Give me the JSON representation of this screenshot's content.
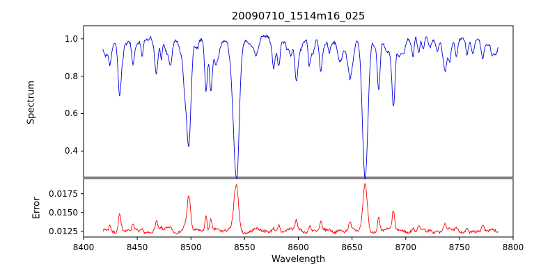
{
  "figure": {
    "title": "20090710_1514m16_025",
    "xlabel": "Wavelength",
    "background_color": "#ffffff",
    "axis_color": "#000000"
  },
  "x_axis": {
    "ticks": [
      8400,
      8450,
      8500,
      8550,
      8600,
      8650,
      8700,
      8750,
      8800
    ],
    "tick_labels": [
      "8400",
      "8450",
      "8500",
      "8550",
      "8600",
      "8650",
      "8700",
      "8750",
      "8800"
    ],
    "xlim": [
      8400,
      8800
    ]
  },
  "chart_data": [
    {
      "type": "line",
      "name": "spectrum",
      "ylabel": "Spectrum",
      "color": "#0000dd",
      "x_range": [
        8418,
        8786
      ],
      "xlim": [
        8400,
        8800
      ],
      "ylim": [
        0.26,
        1.07
      ],
      "yticks": [
        0.4,
        0.6,
        0.8,
        1.0
      ],
      "ytick_labels": [
        "0.4",
        "0.6",
        "0.8",
        "1.0"
      ],
      "continuum_level": 1.0,
      "absorption_lines": [
        {
          "center": 8424.5,
          "depth": 0.1,
          "width": 1.1
        },
        {
          "center": 8433.5,
          "depth": 0.27,
          "width": 1.4
        },
        {
          "center": 8446.0,
          "depth": 0.09,
          "width": 1.1
        },
        {
          "center": 8468.0,
          "depth": 0.13,
          "width": 1.3
        },
        {
          "center": 8498.0,
          "depth": 0.545,
          "width": 2.0
        },
        {
          "center": 8514.0,
          "depth": 0.22,
          "width": 1.2
        },
        {
          "center": 8518.5,
          "depth": 0.18,
          "width": 1.1
        },
        {
          "center": 8542.1,
          "depth": 0.715,
          "width": 2.6
        },
        {
          "center": 8582.0,
          "depth": 0.09,
          "width": 1.1
        },
        {
          "center": 8598.0,
          "depth": 0.12,
          "width": 1.2
        },
        {
          "center": 8611.0,
          "depth": 0.09,
          "width": 1.1
        },
        {
          "center": 8621.0,
          "depth": 0.1,
          "width": 1.1
        },
        {
          "center": 8648.0,
          "depth": 0.1,
          "width": 1.1
        },
        {
          "center": 8662.2,
          "depth": 0.7,
          "width": 2.5
        },
        {
          "center": 8674.8,
          "depth": 0.19,
          "width": 1.2
        },
        {
          "center": 8688.5,
          "depth": 0.28,
          "width": 1.4
        },
        {
          "center": 8712.0,
          "depth": 0.09,
          "width": 1.1
        },
        {
          "center": 8736.0,
          "depth": 0.1,
          "width": 1.2
        },
        {
          "center": 8757.0,
          "depth": 0.08,
          "width": 1.1
        },
        {
          "center": 8772.0,
          "depth": 0.08,
          "width": 1.1
        }
      ],
      "noise": {
        "seed": 42,
        "amplitude": 0.014,
        "micro_line_count": 150,
        "micro_line_max_depth": 0.05
      }
    },
    {
      "type": "line",
      "name": "error",
      "ylabel": "Error",
      "color": "#ff0000",
      "x_range": [
        8418,
        8786
      ],
      "xlim": [
        8400,
        8800
      ],
      "ylim": [
        0.01175,
        0.0195
      ],
      "yticks": [
        0.0125,
        0.015,
        0.0175
      ],
      "ytick_labels": [
        "0.0125",
        "0.0150",
        "0.0175"
      ],
      "baseline": 0.01235,
      "peak_scale": 0.0089,
      "peak_values": {
        "8498": 0.0165,
        "8542": 0.019,
        "8662": 0.0185
      },
      "noise": {
        "seed": 7,
        "amplitude": 0.00035
      }
    }
  ]
}
